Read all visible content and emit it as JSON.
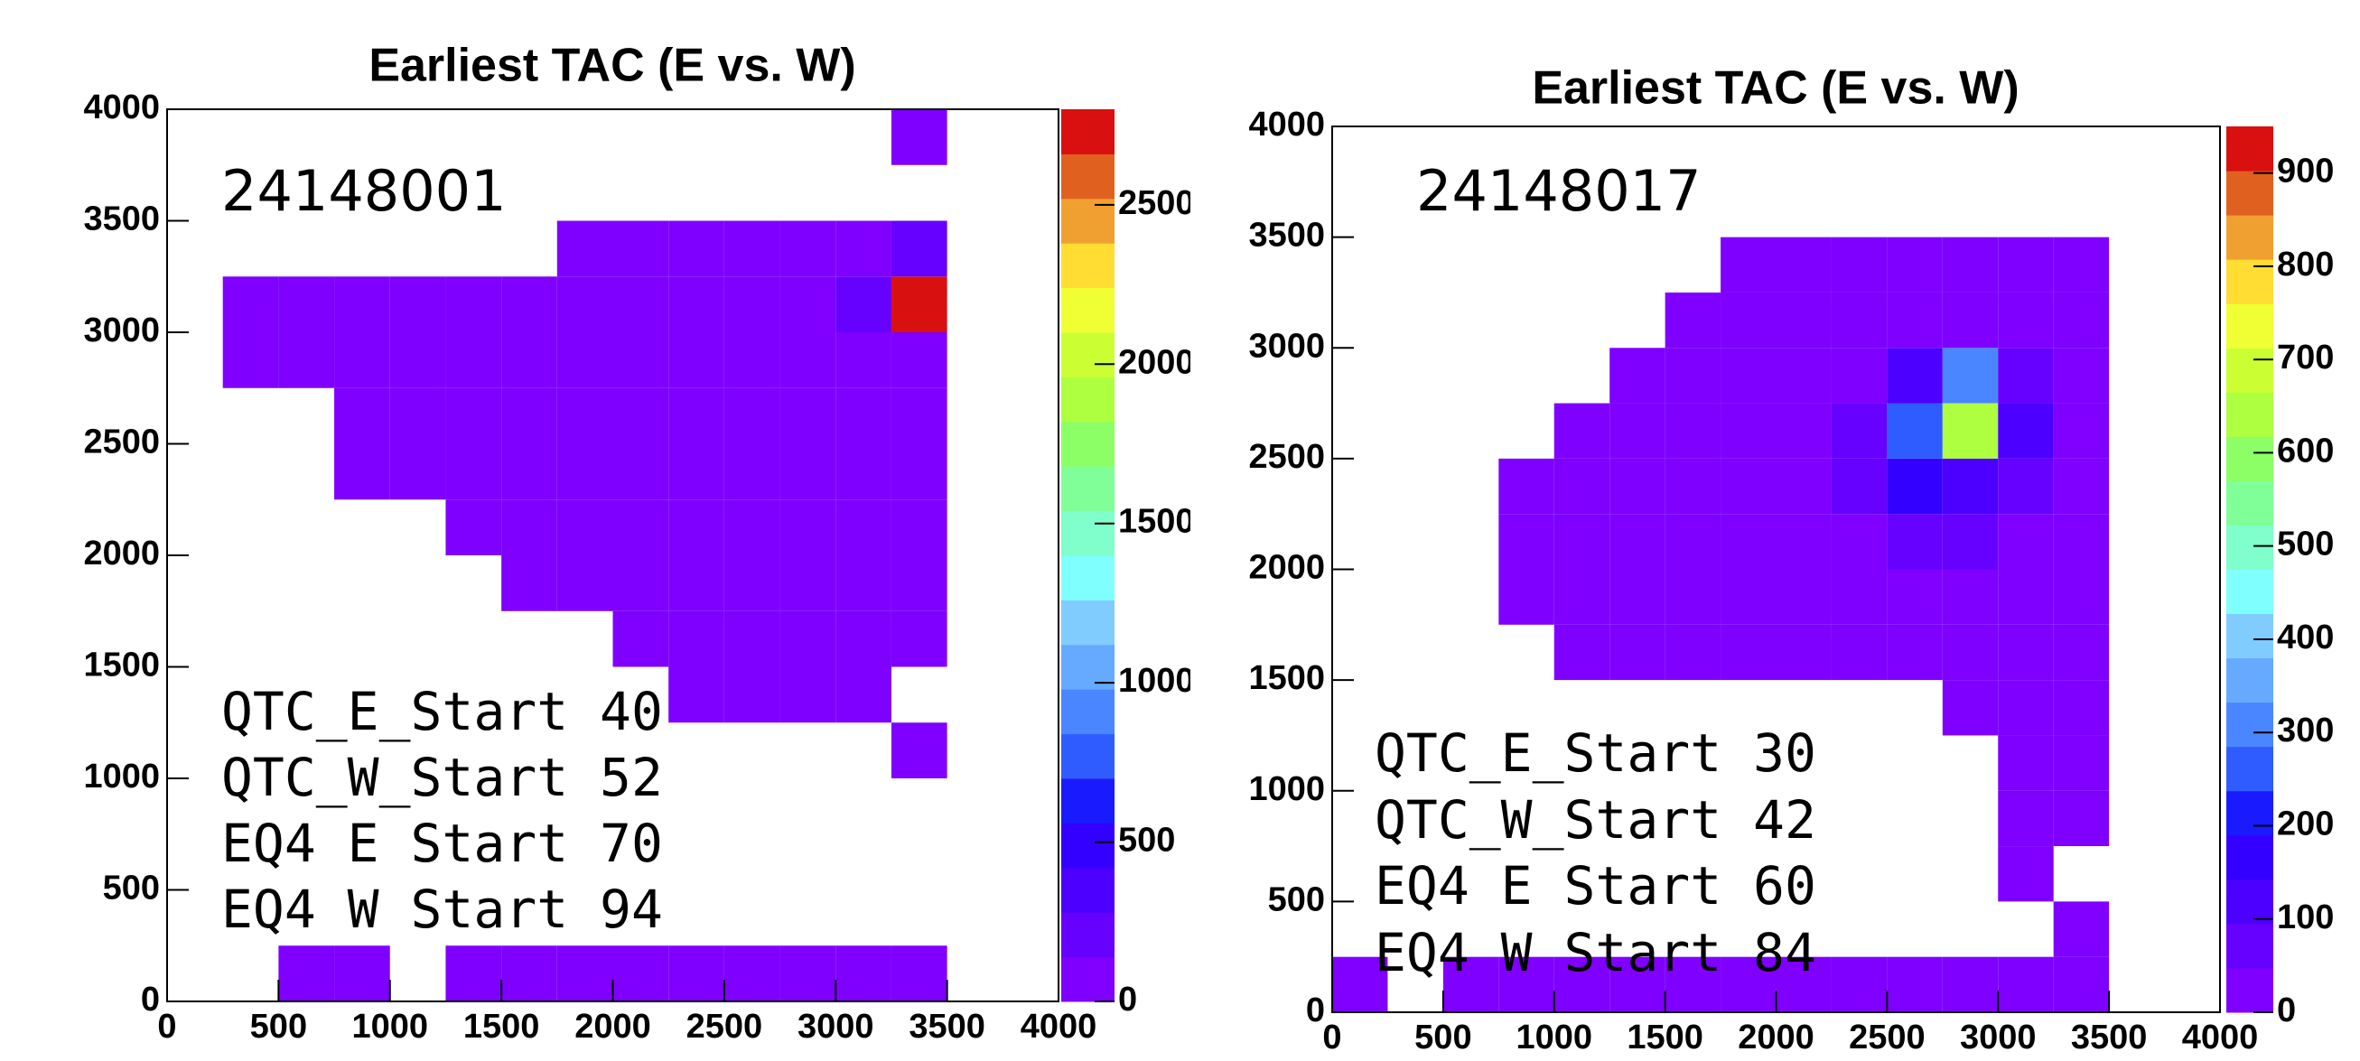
{
  "chart_data": [
    {
      "type": "heatmap",
      "title": "Earliest TAC (E vs. W)",
      "run_label": "24148001",
      "notes": [
        "QTC_E_Start 40",
        "QTC_W_Start 52",
        "EQ4 E Start 70",
        "EQ4 W Start 94"
      ],
      "xlim": [
        0,
        4000
      ],
      "ylim": [
        0,
        4000
      ],
      "xticks": [
        0,
        500,
        1000,
        1500,
        2000,
        2500,
        3000,
        3500,
        4000
      ],
      "yticks": [
        0,
        500,
        1000,
        1500,
        2000,
        2500,
        3000,
        3500,
        4000
      ],
      "xbins": [
        0,
        250,
        500,
        750,
        1000,
        1250,
        1500,
        1750,
        2000,
        2250,
        2500,
        2750,
        3000,
        3250,
        3500,
        3750,
        4000
      ],
      "ybins": [
        0,
        250,
        500,
        750,
        1000,
        1250,
        1500,
        1750,
        2000,
        2250,
        2500,
        2750,
        3000,
        3250,
        3500,
        3750,
        4000
      ],
      "z": [
        [
          null,
          null,
          1,
          1,
          null,
          2,
          3,
          3,
          3,
          3,
          3,
          3,
          3,
          3,
          null,
          null
        ],
        [
          null,
          null,
          null,
          null,
          null,
          null,
          null,
          null,
          null,
          null,
          null,
          null,
          null,
          null,
          null,
          null
        ],
        [
          null,
          null,
          null,
          null,
          null,
          null,
          null,
          null,
          null,
          null,
          null,
          null,
          null,
          null,
          null,
          null
        ],
        [
          null,
          null,
          null,
          null,
          null,
          null,
          null,
          null,
          null,
          null,
          null,
          null,
          null,
          null,
          null,
          null
        ],
        [
          null,
          null,
          null,
          null,
          null,
          null,
          null,
          null,
          null,
          null,
          null,
          null,
          null,
          1,
          null,
          null
        ],
        [
          null,
          null,
          null,
          null,
          null,
          null,
          null,
          null,
          null,
          1,
          2,
          2,
          1,
          null,
          null,
          null
        ],
        [
          null,
          null,
          null,
          null,
          null,
          null,
          null,
          null,
          1,
          3,
          4,
          3,
          3,
          2,
          null,
          null
        ],
        [
          null,
          null,
          null,
          null,
          null,
          null,
          1,
          2,
          5,
          8,
          8,
          8,
          8,
          6,
          null,
          null
        ],
        [
          null,
          null,
          null,
          null,
          null,
          1,
          2,
          10,
          15,
          15,
          15,
          15,
          15,
          12,
          null,
          null
        ],
        [
          null,
          null,
          null,
          1,
          1,
          3,
          8,
          15,
          20,
          20,
          20,
          20,
          20,
          18,
          null,
          null
        ],
        [
          null,
          null,
          null,
          1,
          2,
          5,
          10,
          20,
          25,
          25,
          25,
          25,
          25,
          22,
          null,
          null
        ],
        [
          null,
          1,
          1,
          1,
          2,
          4,
          12,
          22,
          28,
          28,
          30,
          40,
          60,
          120,
          null,
          null
        ],
        [
          null,
          1,
          1,
          2,
          1,
          3,
          8,
          18,
          25,
          28,
          30,
          45,
          150,
          2700,
          null,
          null
        ],
        [
          null,
          null,
          null,
          null,
          null,
          null,
          null,
          2,
          5,
          8,
          10,
          15,
          40,
          200,
          null,
          null
        ],
        [
          null,
          null,
          null,
          null,
          null,
          null,
          null,
          null,
          null,
          null,
          null,
          null,
          null,
          null,
          null,
          null
        ],
        [
          null,
          null,
          null,
          null,
          null,
          null,
          null,
          null,
          null,
          null,
          null,
          null,
          null,
          1,
          null,
          null
        ]
      ],
      "zlim": [
        0,
        2800
      ],
      "zticks": [
        0,
        500,
        1000,
        1500,
        2000,
        2500
      ],
      "palette": [
        "#7f00ff",
        "#6600ff",
        "#4c00ff",
        "#3300ff",
        "#1a1aff",
        "#2f5cff",
        "#4a86ff",
        "#66aaff",
        "#80ccff",
        "#80ffff",
        "#80ffcc",
        "#80ff99",
        "#8cff66",
        "#adff40",
        "#ccff33",
        "#f0ff33",
        "#ffdd33",
        "#f0a030",
        "#e06020",
        "#d81010"
      ]
    },
    {
      "type": "heatmap",
      "title": "Earliest TAC (E vs. W)",
      "run_label": "24148017",
      "notes": [
        "QTC_E_Start 30",
        "QTC_W_Start 42",
        "EQ4 E Start 60",
        "EQ4 W Start 84"
      ],
      "xlim": [
        0,
        4000
      ],
      "ylim": [
        0,
        4000
      ],
      "xticks": [
        0,
        500,
        1000,
        1500,
        2000,
        2500,
        3000,
        3500,
        4000
      ],
      "yticks": [
        0,
        500,
        1000,
        1500,
        2000,
        2500,
        3000,
        3500,
        4000
      ],
      "xbins": [
        0,
        250,
        500,
        750,
        1000,
        1250,
        1500,
        1750,
        2000,
        2250,
        2500,
        2750,
        3000,
        3250,
        3500,
        3750,
        4000
      ],
      "ybins": [
        0,
        250,
        500,
        750,
        1000,
        1250,
        1500,
        1750,
        2000,
        2250,
        2500,
        2750,
        3000,
        3250,
        3500,
        3750,
        4000
      ],
      "z": [
        [
          2,
          null,
          1,
          1,
          2,
          3,
          3,
          3,
          3,
          3,
          3,
          3,
          3,
          3,
          null,
          null
        ],
        [
          null,
          null,
          null,
          null,
          null,
          null,
          null,
          null,
          null,
          null,
          null,
          null,
          null,
          1,
          null,
          null
        ],
        [
          null,
          null,
          null,
          null,
          null,
          null,
          null,
          null,
          null,
          null,
          null,
          null,
          1,
          null,
          null,
          null
        ],
        [
          null,
          null,
          null,
          null,
          null,
          null,
          null,
          null,
          null,
          null,
          null,
          null,
          1,
          1,
          null,
          null
        ],
        [
          null,
          null,
          null,
          null,
          null,
          null,
          null,
          null,
          null,
          null,
          null,
          null,
          1,
          1,
          null,
          null
        ],
        [
          null,
          null,
          null,
          null,
          null,
          null,
          null,
          null,
          null,
          null,
          null,
          2,
          3,
          3,
          null,
          null
        ],
        [
          null,
          null,
          null,
          null,
          1,
          2,
          3,
          5,
          8,
          10,
          12,
          12,
          10,
          8,
          null,
          null
        ],
        [
          null,
          null,
          null,
          1,
          2,
          3,
          5,
          8,
          12,
          18,
          25,
          25,
          20,
          10,
          null,
          null
        ],
        [
          null,
          null,
          null,
          1,
          2,
          4,
          8,
          15,
          25,
          40,
          60,
          50,
          30,
          12,
          null,
          null
        ],
        [
          null,
          null,
          null,
          1,
          1,
          3,
          8,
          15,
          30,
          60,
          150,
          120,
          50,
          15,
          null,
          null
        ],
        [
          null,
          null,
          null,
          null,
          1,
          2,
          5,
          12,
          25,
          60,
          250,
          650,
          120,
          20,
          null,
          null
        ],
        [
          null,
          null,
          null,
          null,
          null,
          1,
          2,
          5,
          12,
          30,
          100,
          300,
          60,
          15,
          null,
          null
        ],
        [
          null,
          null,
          null,
          null,
          null,
          null,
          1,
          2,
          5,
          10,
          20,
          30,
          25,
          10,
          null,
          null
        ],
        [
          null,
          null,
          null,
          null,
          null,
          null,
          null,
          1,
          2,
          3,
          5,
          6,
          5,
          3,
          null,
          null
        ],
        [
          null,
          null,
          null,
          null,
          null,
          null,
          null,
          null,
          null,
          null,
          null,
          null,
          null,
          null,
          null,
          null
        ],
        [
          null,
          null,
          null,
          null,
          null,
          null,
          null,
          null,
          null,
          null,
          null,
          null,
          null,
          null,
          null,
          null
        ]
      ],
      "zlim": [
        0,
        950
      ],
      "zticks": [
        0,
        100,
        200,
        300,
        400,
        500,
        600,
        700,
        800,
        900
      ],
      "palette": [
        "#7f00ff",
        "#6600ff",
        "#4c00ff",
        "#3300ff",
        "#1a1aff",
        "#2f5cff",
        "#4a86ff",
        "#66aaff",
        "#80ccff",
        "#80ffff",
        "#80ffcc",
        "#80ff99",
        "#8cff66",
        "#adff40",
        "#ccff33",
        "#f0ff33",
        "#ffdd33",
        "#f0a030",
        "#e06020",
        "#d81010"
      ]
    }
  ]
}
